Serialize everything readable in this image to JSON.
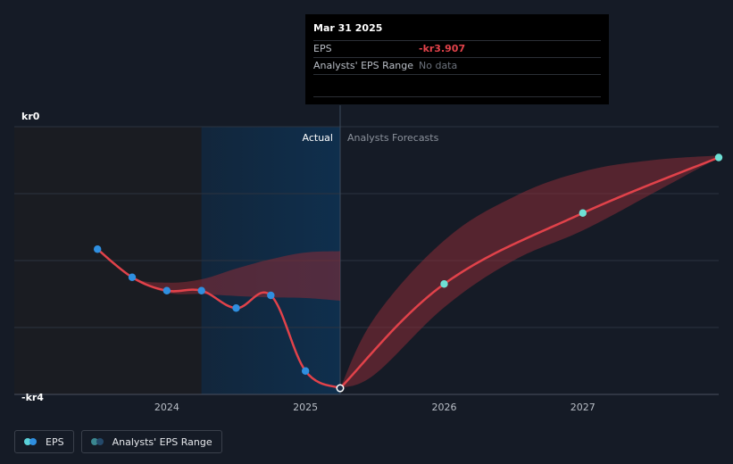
{
  "tooltip": {
    "date": "Mar 31 2025",
    "rows": [
      {
        "label": "EPS",
        "value": "-kr3.907"
      },
      {
        "label": "Analysts' EPS Range",
        "value": "No data"
      }
    ]
  },
  "legend": {
    "items": [
      {
        "label": "EPS",
        "colors": [
          "#5ad1d8",
          "#2f8fe0"
        ]
      },
      {
        "label": "Analysts' EPS Range",
        "colors": [
          "#3b8790",
          "#24496a"
        ]
      }
    ]
  },
  "colors": {
    "line": "#e1424a",
    "actual_marker": "#2f8fe0",
    "forecast_marker": "#6ee0d4",
    "band_fill": "#8b2c37",
    "highlight": "#0f2f4d",
    "background": "#151b26"
  },
  "chart_data": {
    "type": "line",
    "divider_label_actual": "Actual",
    "divider_label_forecast": "Analysts Forecasts",
    "y_ticks": [
      {
        "value": 0,
        "label": "kr0"
      },
      {
        "value": -4,
        "label": "-kr4"
      }
    ],
    "x_ticks": [
      {
        "value": 2024.0,
        "label": "2024"
      },
      {
        "value": 2025.0,
        "label": "2025"
      },
      {
        "value": 2026.0,
        "label": "2026"
      },
      {
        "value": 2027.0,
        "label": "2027"
      }
    ],
    "xlim": [
      2022.9,
      2027.98
    ],
    "ylim": [
      -4.0,
      0.0
    ],
    "grid": true,
    "legend_position": "bottom-left",
    "divider_x": 2025.25,
    "highlight_range": [
      2024.25,
      2025.25
    ],
    "shaded_range": [
      2022.9,
      2024.25
    ],
    "series": [
      {
        "name": "EPS",
        "kind": "actual",
        "points": [
          {
            "x": 2023.5,
            "y": -1.83
          },
          {
            "x": 2023.75,
            "y": -2.25
          },
          {
            "x": 2024.0,
            "y": -2.45
          },
          {
            "x": 2024.25,
            "y": -2.45
          },
          {
            "x": 2024.5,
            "y": -2.71
          },
          {
            "x": 2024.75,
            "y": -2.52
          },
          {
            "x": 2025.0,
            "y": -3.65
          },
          {
            "x": 2025.25,
            "y": -3.907
          }
        ]
      },
      {
        "name": "EPS",
        "kind": "forecast",
        "points": [
          {
            "x": 2025.25,
            "y": -3.907
          },
          {
            "x": 2026.0,
            "y": -2.35
          },
          {
            "x": 2027.0,
            "y": -1.29
          },
          {
            "x": 2027.98,
            "y": -0.46
          }
        ]
      }
    ],
    "range_bands": [
      {
        "x": [
          2023.5,
          2023.75,
          2024.0,
          2024.25,
          2024.5,
          2024.75,
          2025.0,
          2025.25
        ],
        "upper": [
          -1.83,
          -2.25,
          -2.33,
          -2.28,
          -2.12,
          -1.98,
          -1.88,
          -1.86
        ],
        "lower": [
          -1.83,
          -2.25,
          -2.48,
          -2.5,
          -2.53,
          -2.55,
          -2.56,
          -2.6
        ]
      },
      {
        "x": [
          2025.25,
          2025.5,
          2026.0,
          2026.5,
          2027.0,
          2027.5,
          2027.98
        ],
        "upper": [
          -3.907,
          -2.85,
          -1.7,
          -1.05,
          -0.67,
          -0.5,
          -0.43
        ],
        "lower": [
          -3.907,
          -3.7,
          -2.7,
          -2.0,
          -1.55,
          -1.0,
          -0.46
        ]
      }
    ]
  }
}
